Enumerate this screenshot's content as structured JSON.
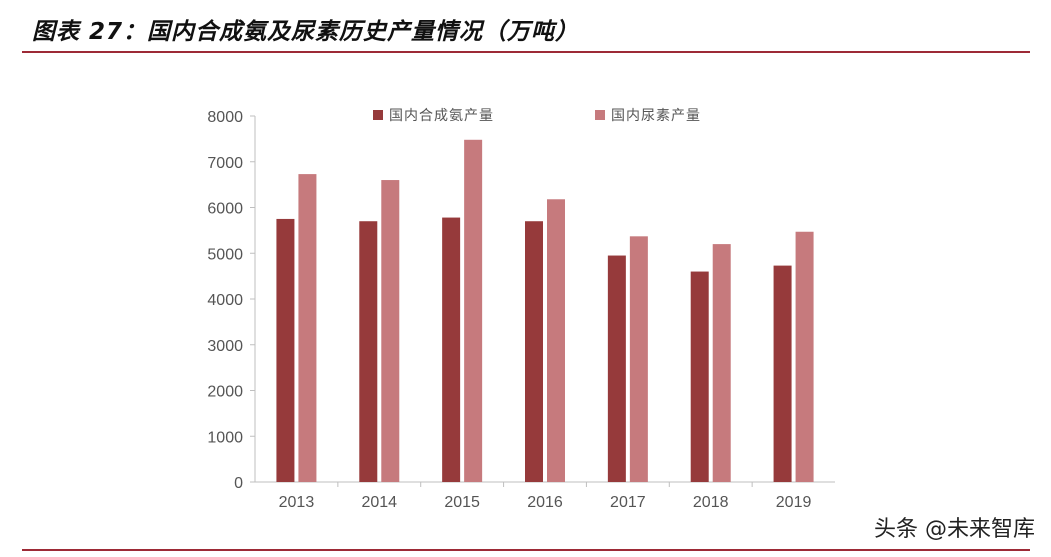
{
  "figure": {
    "title": "图表 27：国内合成氨及尿素历史产量情况（万吨）"
  },
  "watermark": "头条 @未来智库",
  "chart_data": {
    "type": "bar",
    "title": "",
    "xlabel": "",
    "ylabel": "",
    "categories": [
      "2013",
      "2014",
      "2015",
      "2016",
      "2017",
      "2018",
      "2019"
    ],
    "ylim": [
      0,
      8000
    ],
    "yticks": [
      0,
      1000,
      2000,
      3000,
      4000,
      5000,
      6000,
      7000,
      8000
    ],
    "grid": false,
    "legend_position": "top",
    "series": [
      {
        "name": "国内合成氨产量",
        "color": "#963a3b",
        "values": [
          5750,
          5700,
          5780,
          5700,
          4950,
          4600,
          4730
        ]
      },
      {
        "name": "国内尿素产量",
        "color": "#c67a7d",
        "values": [
          6730,
          6600,
          7480,
          6180,
          5370,
          5200,
          5470
        ]
      }
    ]
  }
}
